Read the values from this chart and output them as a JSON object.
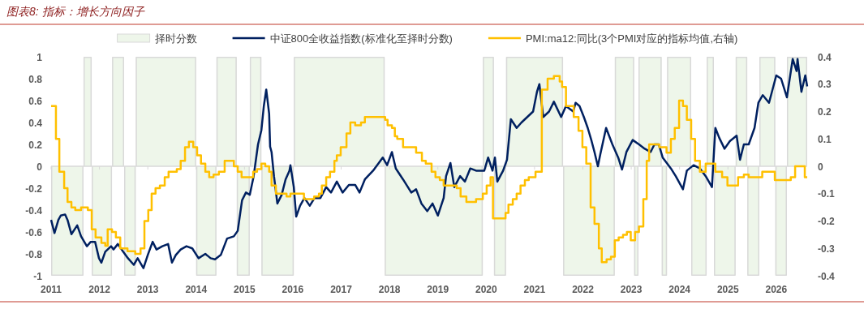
{
  "chart_data": {
    "type": "line",
    "title": "图表8: 指标：增长方向因子",
    "legend": "top",
    "xlim": [
      2011,
      2026.64
    ],
    "xticks": [
      2011,
      2012,
      2013,
      2014,
      2015,
      2016,
      2017,
      2018,
      2019,
      2020,
      2021,
      2022,
      2023,
      2024,
      2025,
      2026
    ],
    "ylim": [
      -1,
      1
    ],
    "yticks": [
      -1,
      -0.8,
      -0.6,
      -0.4,
      -0.2,
      0,
      0.2,
      0.4,
      0.6,
      0.8,
      1
    ],
    "y2lim": [
      -0.4,
      0.4
    ],
    "y2ticks": [
      -0.4,
      -0.3,
      -0.2,
      -0.1,
      0,
      0.1,
      0.2,
      0.3,
      0.4
    ],
    "series": [
      {
        "name": "择时分数",
        "type": "area",
        "color": "#eef6ea",
        "x": [
          2011.0,
          2011.67,
          2011.84,
          2012.26,
          2012.51,
          2012.75,
          2014.0,
          2014.42,
          2014.84,
          2015.11,
          2015.35,
          2016.02,
          2017.9,
          2019.93,
          2020.16,
          2020.41,
          2021.59,
          2022.66,
          2023.06,
          2023.15,
          2023.63,
          2023.74,
          2024.24,
          2024.56,
          2024.71,
          2025.16,
          2025.4,
          2025.65,
          2025.98,
          2026.22,
          2026.64
        ],
        "values": [
          -1,
          1,
          -1,
          1,
          -1,
          1,
          -1,
          1,
          -1,
          1,
          -1,
          1,
          -1,
          1,
          -1,
          1,
          -1,
          1,
          -1,
          1,
          -1,
          1,
          -1,
          1,
          -1,
          1,
          -1,
          1,
          -1,
          1,
          1
        ]
      },
      {
        "name": "中证800全收益指数(标准化至择时分数)",
        "color": "#002060",
        "x": [
          2011.0,
          2011.07,
          2011.15,
          2011.2,
          2011.29,
          2011.34,
          2011.42,
          2011.54,
          2011.62,
          2011.74,
          2011.82,
          2011.91,
          2011.99,
          2012.04,
          2012.12,
          2012.24,
          2012.29,
          2012.38,
          2012.49,
          2012.59,
          2012.71,
          2012.79,
          2012.91,
          2013.0,
          2013.1,
          2013.18,
          2013.3,
          2013.42,
          2013.5,
          2013.58,
          2013.68,
          2013.8,
          2013.92,
          2014.05,
          2014.19,
          2014.3,
          2014.39,
          2014.51,
          2014.64,
          2014.78,
          2014.86,
          2014.95,
          2015.03,
          2015.11,
          2015.19,
          2015.28,
          2015.35,
          2015.4,
          2015.45,
          2015.51,
          2015.53,
          2015.56,
          2015.61,
          2015.68,
          2015.77,
          2015.85,
          2015.93,
          2015.95,
          2016.02,
          2016.07,
          2016.15,
          2016.24,
          2016.35,
          2016.45,
          2016.57,
          2016.69,
          2016.79,
          2016.91,
          2017.03,
          2017.16,
          2017.29,
          2017.38,
          2017.49,
          2017.66,
          2017.86,
          2017.95,
          2018.05,
          2018.13,
          2018.28,
          2018.45,
          2018.55,
          2018.66,
          2018.78,
          2018.89,
          2019.0,
          2019.12,
          2019.17,
          2019.26,
          2019.34,
          2019.46,
          2019.56,
          2019.67,
          2019.79,
          2019.96,
          2020.04,
          2020.13,
          2020.18,
          2020.23,
          2020.35,
          2020.43,
          2020.51,
          2020.63,
          2020.73,
          2020.85,
          2020.97,
          2021.05,
          2021.1,
          2021.18,
          2021.3,
          2021.4,
          2021.55,
          2021.65,
          2021.8,
          2021.85,
          2021.93,
          2022.02,
          2022.1,
          2022.18,
          2022.24,
          2022.31,
          2022.36,
          2022.48,
          2022.61,
          2022.73,
          2022.81,
          2022.9,
          2023.03,
          2023.16,
          2023.28,
          2023.4,
          2023.48,
          2023.57,
          2023.65,
          2023.82,
          2023.92,
          2024.07,
          2024.15,
          2024.29,
          2024.42,
          2024.54,
          2024.67,
          2024.74,
          2024.82,
          2024.93,
          2025.04,
          2025.18,
          2025.25,
          2025.33,
          2025.43,
          2025.55,
          2025.63,
          2025.72,
          2025.85,
          2026.0,
          2026.1,
          2026.22,
          2026.34,
          2026.42,
          2026.44,
          2026.52,
          2026.6,
          2026.64
        ],
        "values": [
          -0.49,
          -0.61,
          -0.49,
          -0.45,
          -0.44,
          -0.49,
          -0.62,
          -0.54,
          -0.64,
          -0.73,
          -0.69,
          -0.69,
          -0.84,
          -0.88,
          -0.78,
          -0.73,
          -0.76,
          -0.71,
          -0.78,
          -0.84,
          -0.9,
          -0.84,
          -0.93,
          -0.81,
          -0.69,
          -0.76,
          -0.73,
          -0.71,
          -0.88,
          -0.81,
          -0.76,
          -0.73,
          -0.75,
          -0.84,
          -0.8,
          -0.84,
          -0.85,
          -0.81,
          -0.66,
          -0.64,
          -0.59,
          -0.31,
          -0.24,
          -0.26,
          -0.09,
          0.2,
          0.33,
          0.55,
          0.7,
          0.48,
          0.18,
          0.13,
          -0.09,
          -0.34,
          -0.26,
          -0.12,
          -0.04,
          0.01,
          -0.19,
          -0.46,
          -0.36,
          -0.29,
          -0.36,
          -0.29,
          -0.29,
          -0.19,
          -0.24,
          -0.14,
          -0.24,
          -0.17,
          -0.17,
          -0.24,
          -0.12,
          -0.04,
          0.08,
          0.01,
          0.13,
          -0.02,
          -0.12,
          -0.24,
          -0.21,
          -0.34,
          -0.41,
          -0.34,
          -0.45,
          -0.29,
          -0.09,
          0.03,
          -0.19,
          -0.09,
          -0.14,
          -0.02,
          -0.04,
          -0.04,
          0.08,
          -0.04,
          0.08,
          -0.14,
          -0.04,
          0.06,
          0.43,
          0.35,
          0.4,
          0.45,
          0.5,
          0.68,
          0.75,
          0.45,
          0.5,
          0.59,
          0.45,
          0.55,
          0.5,
          0.58,
          0.55,
          0.45,
          0.35,
          0.23,
          0.13,
          0.0,
          0.11,
          0.35,
          0.2,
          0.08,
          -0.03,
          0.13,
          0.24,
          0.2,
          0.16,
          0.13,
          0.2,
          0.2,
          0.08,
          -0.02,
          -0.09,
          -0.21,
          -0.04,
          0.01,
          -0.02,
          -0.09,
          -0.19,
          0.35,
          0.26,
          0.16,
          0.23,
          0.28,
          0.06,
          0.2,
          0.2,
          0.35,
          0.58,
          0.65,
          0.58,
          0.83,
          0.8,
          0.63,
          0.98,
          0.87,
          0.98,
          0.68,
          0.83,
          0.73
        ]
      },
      {
        "name": "PMI:ma12:同比(3个PMI对应的指标均值,右轴)",
        "type": "step",
        "axis": "y2",
        "color": "#ffc000",
        "x": [
          2011.0,
          2011.1,
          2011.17,
          2011.27,
          2011.34,
          2011.42,
          2011.5,
          2011.62,
          2011.76,
          2011.84,
          2011.92,
          2012.04,
          2012.12,
          2012.17,
          2012.26,
          2012.34,
          2012.43,
          2012.58,
          2012.74,
          2012.85,
          2012.93,
          2013.01,
          2013.08,
          2013.16,
          2013.25,
          2013.35,
          2013.43,
          2013.6,
          2013.68,
          2013.77,
          2013.85,
          2013.94,
          2014.02,
          2014.1,
          2014.19,
          2014.27,
          2014.36,
          2014.47,
          2014.59,
          2014.69,
          2014.78,
          2014.86,
          2014.94,
          2015.18,
          2015.26,
          2015.35,
          2015.43,
          2015.51,
          2015.56,
          2015.65,
          2015.77,
          2015.87,
          2015.95,
          2016.02,
          2016.23,
          2016.44,
          2016.54,
          2016.6,
          2016.69,
          2016.77,
          2016.86,
          2016.91,
          2016.99,
          2017.11,
          2017.19,
          2017.29,
          2017.41,
          2017.49,
          2017.83,
          2017.91,
          2017.96,
          2018.05,
          2018.11,
          2018.16,
          2018.28,
          2018.45,
          2018.55,
          2018.67,
          2018.75,
          2018.87,
          2018.95,
          2019.04,
          2019.12,
          2019.22,
          2019.39,
          2019.47,
          2019.59,
          2019.67,
          2019.79,
          2019.93,
          2020.01,
          2020.09,
          2020.14,
          2020.3,
          2020.4,
          2020.46,
          2020.55,
          2020.63,
          2020.71,
          2020.8,
          2020.88,
          2021.02,
          2021.15,
          2021.27,
          2021.4,
          2021.52,
          2021.57,
          2021.65,
          2021.81,
          2021.91,
          2021.99,
          2022.07,
          2022.16,
          2022.24,
          2022.33,
          2022.39,
          2022.49,
          2022.58,
          2022.66,
          2022.74,
          2022.83,
          2022.91,
          2022.99,
          2023.08,
          2023.16,
          2023.25,
          2023.32,
          2023.37,
          2023.58,
          2023.73,
          2023.82,
          2023.9,
          2023.99,
          2024.07,
          2024.15,
          2024.24,
          2024.32,
          2024.42,
          2024.54,
          2024.66,
          2024.74,
          2024.88,
          2024.99,
          2025.13,
          2025.21,
          2025.33,
          2025.43,
          2025.71,
          2025.85,
          2025.97,
          2026.18,
          2026.3,
          2026.39,
          2026.59,
          2026.64
        ],
        "values": [
          0.22,
          0.1,
          -0.02,
          -0.08,
          -0.13,
          -0.15,
          -0.16,
          -0.15,
          -0.16,
          -0.23,
          -0.26,
          -0.28,
          -0.29,
          -0.23,
          -0.24,
          -0.26,
          -0.3,
          -0.31,
          -0.32,
          -0.3,
          -0.2,
          -0.16,
          -0.1,
          -0.08,
          -0.07,
          -0.04,
          -0.02,
          -0.01,
          0.02,
          0.07,
          0.09,
          0.07,
          0.04,
          0.01,
          -0.02,
          -0.04,
          -0.03,
          -0.02,
          0.02,
          0.02,
          0.0,
          -0.02,
          -0.04,
          -0.02,
          -0.01,
          0.01,
          0.0,
          -0.02,
          -0.07,
          -0.1,
          -0.1,
          -0.11,
          -0.1,
          -0.1,
          -0.12,
          -0.11,
          -0.1,
          -0.07,
          -0.04,
          -0.02,
          0.02,
          0.04,
          0.07,
          0.12,
          0.16,
          0.15,
          0.16,
          0.18,
          0.18,
          0.17,
          0.15,
          0.14,
          0.11,
          0.1,
          0.07,
          0.07,
          0.05,
          0.02,
          0.01,
          -0.02,
          -0.04,
          -0.05,
          -0.07,
          -0.07,
          -0.08,
          -0.11,
          -0.13,
          -0.13,
          -0.12,
          -0.1,
          -0.07,
          -0.04,
          -0.19,
          -0.19,
          -0.17,
          -0.14,
          -0.12,
          -0.1,
          -0.07,
          -0.05,
          -0.04,
          -0.02,
          0.28,
          0.32,
          0.33,
          0.31,
          0.29,
          0.22,
          0.18,
          0.13,
          0.07,
          0.01,
          -0.15,
          -0.21,
          -0.3,
          -0.35,
          -0.34,
          -0.33,
          -0.27,
          -0.26,
          -0.25,
          -0.24,
          -0.27,
          -0.24,
          -0.22,
          -0.12,
          0.02,
          0.08,
          0.07,
          0.05,
          0.1,
          0.14,
          0.24,
          0.22,
          0.17,
          0.1,
          0.02,
          -0.02,
          0.01,
          0.01,
          -0.02,
          -0.04,
          -0.07,
          -0.07,
          -0.04,
          -0.03,
          -0.04,
          -0.02,
          -0.02,
          -0.05,
          -0.05,
          -0.04,
          0.0,
          -0.04,
          -0.04
        ]
      }
    ]
  }
}
